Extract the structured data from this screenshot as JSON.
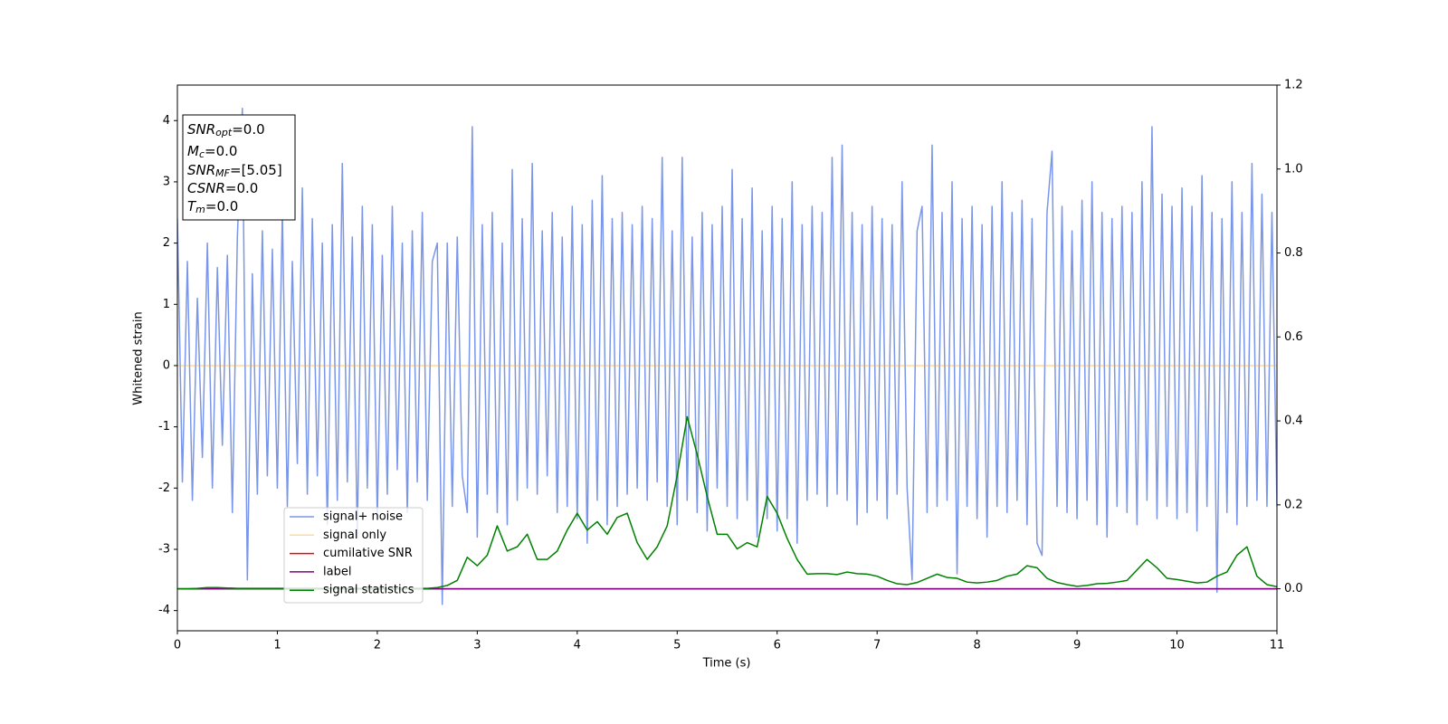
{
  "chart_data": {
    "type": "line",
    "xlabel": "Time (s)",
    "ylabel": "Whitened strain",
    "xlim": [
      0,
      11
    ],
    "xticks": [
      0,
      1,
      2,
      3,
      4,
      5,
      6,
      7,
      8,
      9,
      10,
      11
    ],
    "ylim": [
      -4.33,
      4.58
    ],
    "yticks": [
      -4,
      -3,
      -2,
      -1,
      0,
      1,
      2,
      3,
      4
    ],
    "y2lim": [
      -0.1,
      1.2
    ],
    "y2ticks": [
      {
        "value": 0,
        "label": "0.0"
      },
      {
        "value": 0.2,
        "label": "0.2"
      },
      {
        "value": 0.4,
        "label": "0.4"
      },
      {
        "value": 0.6,
        "label": "0.6"
      },
      {
        "value": 0.8,
        "label": "0.8"
      },
      {
        "value": 1,
        "label": "1.0"
      },
      {
        "value": 1.2,
        "label": "1.2"
      }
    ],
    "legend_loc": "lower left",
    "annotations": [
      {
        "base": "SNR",
        "sub": "opt",
        "rest": "=0.0"
      },
      {
        "base": "M",
        "sub": "c",
        "rest": "=0.0"
      },
      {
        "base": "SNR",
        "sub": "MF",
        "rest": "=[5.05]"
      },
      {
        "base": "CSNR",
        "rest": "=0.0"
      },
      {
        "base": "T",
        "sub": "m",
        "rest": "=0.0"
      }
    ],
    "series": [
      {
        "name": "signal+ noise",
        "color": "#4169e1",
        "opacity": 0.7,
        "x": [
          0,
          0.05,
          0.1,
          0.15,
          0.2,
          0.25,
          0.3,
          0.35,
          0.4,
          0.45,
          0.5,
          0.55,
          0.6,
          0.65,
          0.7,
          0.75,
          0.8,
          0.85,
          0.9,
          0.95,
          1,
          1.05,
          1.1,
          1.15,
          1.2,
          1.25,
          1.3,
          1.35,
          1.4,
          1.45,
          1.5,
          1.55,
          1.6,
          1.65,
          1.7,
          1.75,
          1.8,
          1.85,
          1.9,
          1.95,
          2,
          2.05,
          2.1,
          2.15,
          2.2,
          2.25,
          2.3,
          2.35,
          2.4,
          2.45,
          2.5,
          2.55,
          2.6,
          2.65,
          2.7,
          2.75,
          2.8,
          2.85,
          2.9,
          2.95,
          3,
          3.05,
          3.1,
          3.15,
          3.2,
          3.25,
          3.3,
          3.35,
          3.4,
          3.45,
          3.5,
          3.55,
          3.6,
          3.65,
          3.7,
          3.75,
          3.8,
          3.85,
          3.9,
          3.95,
          4,
          4.05,
          4.1,
          4.15,
          4.2,
          4.25,
          4.3,
          4.35,
          4.4,
          4.45,
          4.5,
          4.55,
          4.6,
          4.65,
          4.7,
          4.75,
          4.8,
          4.85,
          4.9,
          4.95,
          5,
          5.05,
          5.1,
          5.15,
          5.2,
          5.25,
          5.3,
          5.35,
          5.4,
          5.45,
          5.5,
          5.55,
          5.6,
          5.65,
          5.7,
          5.75,
          5.8,
          5.85,
          5.9,
          5.95,
          6,
          6.05,
          6.1,
          6.15,
          6.2,
          6.25,
          6.3,
          6.35,
          6.4,
          6.45,
          6.5,
          6.55,
          6.6,
          6.65,
          6.7,
          6.75,
          6.8,
          6.85,
          6.9,
          6.95,
          7,
          7.05,
          7.1,
          7.15,
          7.2,
          7.25,
          7.3,
          7.35,
          7.4,
          7.45,
          7.5,
          7.55,
          7.6,
          7.65,
          7.7,
          7.75,
          7.8,
          7.85,
          7.9,
          7.95,
          8,
          8.05,
          8.1,
          8.15,
          8.2,
          8.25,
          8.3,
          8.35,
          8.4,
          8.45,
          8.5,
          8.55,
          8.6,
          8.65,
          8.7,
          8.75,
          8.8,
          8.85,
          8.9,
          8.95,
          9,
          9.05,
          9.1,
          9.15,
          9.2,
          9.25,
          9.3,
          9.35,
          9.4,
          9.45,
          9.5,
          9.55,
          9.6,
          9.65,
          9.7,
          9.75,
          9.8,
          9.85,
          9.9,
          9.95,
          10,
          10.05,
          10.1,
          10.15,
          10.2,
          10.25,
          10.3,
          10.35,
          10.4,
          10.45,
          10.5,
          10.55,
          10.6,
          10.65,
          10.7,
          10.75,
          10.8,
          10.85,
          10.9,
          10.95,
          11
        ],
        "values": [
          2.4,
          -1.9,
          1.7,
          -2.2,
          1.1,
          -1.5,
          2.0,
          -2.0,
          1.6,
          -1.3,
          1.8,
          -2.4,
          2.1,
          4.2,
          -3.5,
          1.5,
          -2.1,
          2.2,
          -1.8,
          1.9,
          -2.0,
          2.5,
          -2.3,
          1.7,
          -1.6,
          2.9,
          -2.1,
          2.4,
          -1.8,
          2.0,
          -2.6,
          2.3,
          -2.2,
          3.3,
          -1.9,
          2.1,
          -2.8,
          2.6,
          -2.0,
          2.3,
          -2.5,
          1.8,
          -2.1,
          2.6,
          -1.7,
          2.0,
          -2.4,
          2.2,
          -1.9,
          2.5,
          -2.2,
          1.7,
          2.0,
          -3.9,
          2.0,
          -2.3,
          2.1,
          -1.8,
          -2.4,
          3.9,
          -2.8,
          2.3,
          -2.1,
          2.5,
          -2.4,
          2.0,
          -2.6,
          3.2,
          -2.2,
          2.4,
          -2.0,
          3.3,
          -2.1,
          2.2,
          -1.8,
          2.5,
          -2.4,
          2.1,
          -2.3,
          2.6,
          -2.5,
          2.3,
          -2.9,
          2.7,
          -2.2,
          3.1,
          -2.6,
          2.4,
          -2.3,
          2.5,
          -2.1,
          2.3,
          -2.0,
          2.6,
          -2.2,
          2.4,
          -1.9,
          3.4,
          -2.3,
          2.2,
          -2.6,
          3.4,
          -2.2,
          2.1,
          -2.4,
          2.5,
          -2.7,
          2.3,
          -2.0,
          2.6,
          -2.3,
          3.2,
          -2.5,
          2.4,
          -2.2,
          2.9,
          -2.8,
          2.2,
          -2.5,
          2.6,
          -2.7,
          2.4,
          -2.5,
          3.0,
          -2.9,
          2.3,
          -2.2,
          2.6,
          -2.1,
          2.5,
          -2.3,
          3.4,
          -2.1,
          3.6,
          -2.2,
          2.5,
          -2.6,
          2.3,
          -2.4,
          2.6,
          -2.2,
          2.4,
          -2.5,
          2.3,
          -2.1,
          3.0,
          -2.0,
          -3.5,
          2.2,
          2.6,
          -2.4,
          3.6,
          -2.3,
          2.5,
          -2.2,
          3.0,
          -3.4,
          2.4,
          -2.3,
          2.6,
          -2.5,
          2.3,
          -2.8,
          2.6,
          -2.3,
          3.0,
          -2.4,
          2.5,
          -2.2,
          2.7,
          -2.6,
          2.4,
          -2.9,
          -3.1,
          2.5,
          3.5,
          -2.3,
          2.6,
          -2.4,
          2.2,
          -2.5,
          2.7,
          -2.2,
          3.0,
          -2.6,
          2.5,
          -2.8,
          2.4,
          -2.3,
          2.6,
          -2.4,
          2.5,
          -2.6,
          3.0,
          -2.2,
          3.9,
          -2.5,
          2.8,
          -2.3,
          2.6,
          -2.5,
          2.9,
          -2.4,
          2.6,
          -2.7,
          3.1,
          -2.3,
          2.5,
          -3.7,
          2.4,
          -2.4,
          3.0,
          -2.6,
          2.5,
          -2.3,
          3.3,
          -2.2,
          2.8,
          -2.3,
          2.5,
          -2.3
        ]
      },
      {
        "name": "signal only",
        "color": "#ffa500",
        "opacity": 0.4,
        "x": [
          0,
          11
        ],
        "values": [
          0,
          0
        ]
      },
      {
        "name": "cumilative SNR",
        "color": "#ff0000",
        "axis": "y2",
        "x": [
          0,
          11
        ],
        "values": [
          0,
          0
        ]
      },
      {
        "name": "label",
        "color": "#800080",
        "axis": "y2",
        "x": [
          0,
          11
        ],
        "values": [
          0,
          0
        ]
      },
      {
        "name": "signal statistics",
        "color": "#008000",
        "axis": "y2",
        "x": [
          0,
          0.1,
          0.2,
          0.3,
          0.4,
          0.5,
          0.6,
          0.7,
          0.8,
          0.9,
          1,
          1.1,
          1.2,
          1.3,
          1.4,
          1.5,
          1.6,
          1.7,
          1.8,
          1.9,
          2,
          2.1,
          2.2,
          2.3,
          2.4,
          2.5,
          2.6,
          2.7,
          2.8,
          2.9,
          3,
          3.1,
          3.2,
          3.3,
          3.4,
          3.5,
          3.6,
          3.7,
          3.8,
          3.9,
          4,
          4.1,
          4.2,
          4.3,
          4.4,
          4.5,
          4.6,
          4.7,
          4.8,
          4.9,
          5,
          5.1,
          5.2,
          5.3,
          5.4,
          5.5,
          5.6,
          5.7,
          5.8,
          5.9,
          6,
          6.1,
          6.2,
          6.3,
          6.4,
          6.5,
          6.6,
          6.7,
          6.8,
          6.9,
          7,
          7.1,
          7.2,
          7.3,
          7.4,
          7.5,
          7.6,
          7.7,
          7.8,
          7.9,
          8,
          8.1,
          8.2,
          8.3,
          8.4,
          8.5,
          8.6,
          8.7,
          8.8,
          8.9,
          9,
          9.1,
          9.2,
          9.3,
          9.4,
          9.5,
          9.6,
          9.7,
          9.8,
          9.9,
          10,
          10.1,
          10.2,
          10.3,
          10.4,
          10.5,
          10.6,
          10.7,
          10.8,
          10.9,
          11
        ],
        "values": [
          0,
          0,
          0.001,
          0.003,
          0.003,
          0.002,
          0.001,
          0.001,
          0.001,
          0.001,
          0.001,
          0.001,
          0.001,
          0.001,
          0.001,
          0.001,
          0.001,
          0.001,
          0.001,
          0.001,
          0.001,
          0.001,
          0.001,
          0.001,
          0.001,
          0.001,
          0.003,
          0.008,
          0.02,
          0.075,
          0.055,
          0.08,
          0.15,
          0.09,
          0.1,
          0.13,
          0.07,
          0.07,
          0.09,
          0.14,
          0.18,
          0.14,
          0.16,
          0.13,
          0.17,
          0.18,
          0.11,
          0.07,
          0.1,
          0.15,
          0.27,
          0.41,
          0.32,
          0.22,
          0.13,
          0.13,
          0.095,
          0.11,
          0.1,
          0.22,
          0.18,
          0.12,
          0.07,
          0.035,
          0.036,
          0.036,
          0.034,
          0.04,
          0.036,
          0.035,
          0.03,
          0.02,
          0.012,
          0.01,
          0.015,
          0.025,
          0.035,
          0.027,
          0.025,
          0.016,
          0.014,
          0.016,
          0.02,
          0.03,
          0.035,
          0.055,
          0.05,
          0.025,
          0.015,
          0.01,
          0.006,
          0.008,
          0.012,
          0.013,
          0.016,
          0.02,
          0.045,
          0.07,
          0.05,
          0.025,
          0.022,
          0.018,
          0.014,
          0.016,
          0.03,
          0.04,
          0.08,
          0.1,
          0.03,
          0.01,
          0.005
        ]
      }
    ]
  }
}
